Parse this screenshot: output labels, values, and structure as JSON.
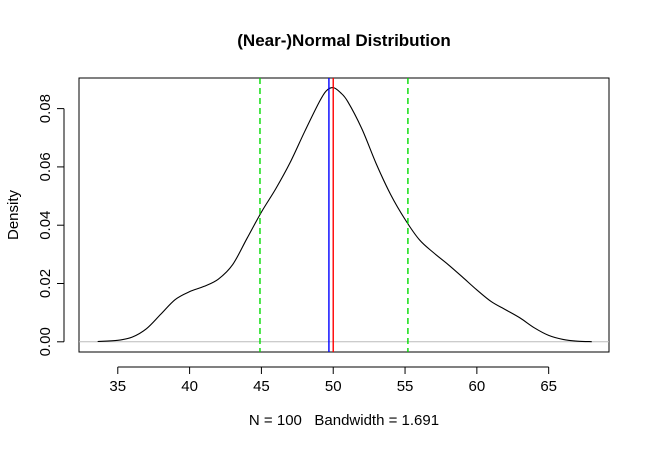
{
  "chart_data": {
    "type": "line",
    "title": "(Near-)Normal Distribution",
    "xlabel": "N = 100   Bandwidth = 1.691",
    "ylabel": "Density",
    "xlim": [
      32.3,
      69.2
    ],
    "ylim": [
      -0.0035,
      0.0905
    ],
    "xticks": [
      "35",
      "40",
      "45",
      "50",
      "55",
      "60",
      "65"
    ],
    "yticks": [
      "0.00",
      "0.02",
      "0.04",
      "0.06",
      "0.08"
    ],
    "grid": false,
    "series": [
      {
        "kind": "density",
        "color": "#000000",
        "points": [
          [
            33.6,
            0.0001
          ],
          [
            35.0,
            0.0005
          ],
          [
            36.0,
            0.0016
          ],
          [
            37.0,
            0.0045
          ],
          [
            38.0,
            0.0095
          ],
          [
            39.0,
            0.0145
          ],
          [
            40.0,
            0.0172
          ],
          [
            41.0,
            0.019
          ],
          [
            42.0,
            0.0215
          ],
          [
            43.0,
            0.0265
          ],
          [
            44.0,
            0.0355
          ],
          [
            45.0,
            0.0445
          ],
          [
            46.0,
            0.0525
          ],
          [
            47.0,
            0.0615
          ],
          [
            48.0,
            0.072
          ],
          [
            49.0,
            0.082
          ],
          [
            49.5,
            0.086
          ],
          [
            50.0,
            0.0872
          ],
          [
            50.5,
            0.0855
          ],
          [
            51.0,
            0.0825
          ],
          [
            52.0,
            0.073
          ],
          [
            53.0,
            0.061
          ],
          [
            54.0,
            0.0505
          ],
          [
            55.0,
            0.042
          ],
          [
            56.0,
            0.035
          ],
          [
            57.0,
            0.0305
          ],
          [
            58.0,
            0.0265
          ],
          [
            59.0,
            0.0222
          ],
          [
            60.0,
            0.0178
          ],
          [
            61.0,
            0.0138
          ],
          [
            62.0,
            0.011
          ],
          [
            63.0,
            0.0082
          ],
          [
            64.0,
            0.0048
          ],
          [
            65.0,
            0.0022
          ],
          [
            66.0,
            0.0008
          ],
          [
            67.0,
            0.0002
          ],
          [
            68.0,
            5e-05
          ]
        ]
      }
    ],
    "vlines": [
      {
        "x": 49.7,
        "color": "#0000ff",
        "style": "solid"
      },
      {
        "x": 50.0,
        "color": "#ff0000",
        "style": "solid"
      },
      {
        "x": 44.9,
        "color": "#00dd00",
        "style": "dashed"
      },
      {
        "x": 55.2,
        "color": "#00dd00",
        "style": "dashed"
      }
    ],
    "baseline": {
      "y": 0,
      "color": "#bbbbbb"
    }
  }
}
